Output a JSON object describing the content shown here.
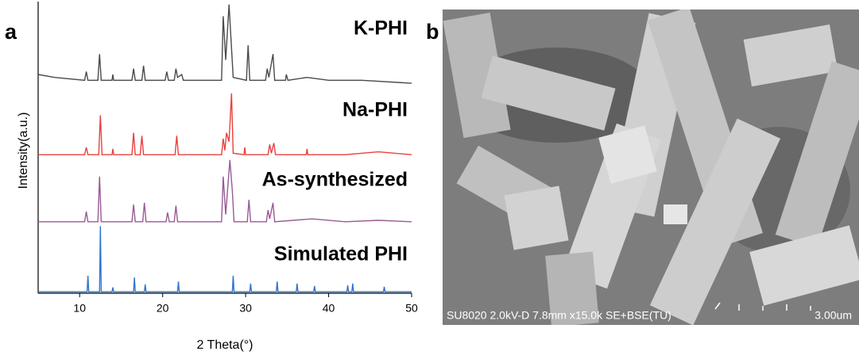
{
  "panel_labels": [
    "a",
    "b"
  ],
  "chart_data": {
    "type": "line",
    "xlabel": "2 Theta(°)",
    "ylabel": "Intensity(a.u.)",
    "xlim": [
      5,
      50
    ],
    "xticks": [
      10,
      20,
      30,
      40,
      50
    ],
    "ylim": [
      0,
      100
    ],
    "series": [
      {
        "name": "K-PHI",
        "color": "#4a4a4a",
        "x": [
          5,
          7,
          10.6,
          10.8,
          11.0,
          12.2,
          12.4,
          12.6,
          13.9,
          14.0,
          14.1,
          16.3,
          16.5,
          16.7,
          17.5,
          17.7,
          17.9,
          20.3,
          20.5,
          20.7,
          21.4,
          21.6,
          21.8,
          22.3,
          22.5,
          27.1,
          27.3,
          27.6,
          28.0,
          28.3,
          28.5,
          30.1,
          30.3,
          30.5,
          32.4,
          32.6,
          32.8,
          33.3,
          33.5,
          34.8,
          34.9,
          35.1,
          37.4,
          40,
          44,
          50
        ],
        "values": [
          75,
          74,
          73,
          76,
          73,
          73,
          82,
          73,
          73,
          75,
          73,
          73,
          77,
          73,
          73,
          78,
          73,
          73,
          76,
          73,
          73,
          77,
          74,
          75,
          73,
          73,
          95,
          80,
          99,
          84,
          74,
          73,
          85,
          73,
          73,
          77,
          74,
          82,
          73,
          73,
          75,
          73,
          74,
          73,
          73,
          72
        ]
      },
      {
        "name": "Na-PHI",
        "color": "#e8413e",
        "x": [
          5,
          10.6,
          10.8,
          11.0,
          12.3,
          12.5,
          12.7,
          13.9,
          14.0,
          14.1,
          16.3,
          16.5,
          16.7,
          17.3,
          17.5,
          17.7,
          21.5,
          21.7,
          21.9,
          27.1,
          27.3,
          27.5,
          27.7,
          28.0,
          28.3,
          28.5,
          29.8,
          29.9,
          30.0,
          32.7,
          32.9,
          33.1,
          33.4,
          33.6,
          37.3,
          37.4,
          37.5,
          42,
          46,
          50
        ],
        "values": [
          47.5,
          47.5,
          50,
          47.5,
          47.5,
          61,
          47.5,
          47.5,
          49.5,
          47.5,
          47.5,
          55,
          47.5,
          47.5,
          54,
          47.5,
          47.5,
          54,
          47.5,
          47.5,
          53,
          49,
          55,
          52,
          68.5,
          48,
          47.5,
          50,
          47.5,
          47.5,
          51,
          48,
          51.5,
          47.5,
          47.5,
          49.5,
          47.5,
          47.5,
          48.5,
          47.5
        ]
      },
      {
        "name": "As-synthesized",
        "color": "#9a5a96",
        "x": [
          5,
          10.6,
          10.8,
          11.0,
          12.2,
          12.4,
          12.6,
          16.3,
          16.5,
          16.7,
          17.6,
          17.8,
          18.0,
          20.4,
          20.6,
          20.8,
          21.4,
          21.6,
          21.8,
          27.1,
          27.3,
          27.6,
          28.1,
          28.4,
          28.6,
          30.2,
          30.4,
          30.6,
          32.5,
          32.7,
          32.9,
          33.3,
          33.5,
          38,
          42,
          46,
          50
        ],
        "values": [
          24.5,
          24.5,
          28,
          24.5,
          24.5,
          40,
          24.5,
          24.5,
          30.4,
          24.5,
          24.5,
          31,
          24.5,
          24.5,
          27.7,
          24.5,
          24.5,
          30,
          24.5,
          24.5,
          40,
          27,
          45.7,
          35,
          24.5,
          24.5,
          32,
          24.5,
          24.5,
          28.5,
          25.5,
          31,
          24.5,
          25.5,
          24.5,
          25,
          24.5
        ]
      },
      {
        "name": "Simulated PHI",
        "color": "#2f74cf",
        "x": [
          5,
          10.9,
          11.0,
          11.1,
          12.4,
          12.5,
          12.6,
          13.9,
          14.0,
          14.1,
          16.5,
          16.6,
          16.7,
          17.8,
          17.9,
          18.0,
          21.8,
          21.9,
          22.0,
          28.4,
          28.5,
          28.6,
          30.5,
          30.6,
          30.7,
          33.7,
          33.8,
          33.9,
          36.1,
          36.2,
          36.3,
          38.2,
          38.3,
          38.4,
          42.2,
          42.3,
          42.4,
          42.8,
          42.9,
          43.0,
          46.6,
          46.7,
          46.8,
          50
        ],
        "values": [
          0.5,
          0.5,
          6,
          0.5,
          0.5,
          23,
          0.5,
          0.5,
          2,
          0.5,
          0.5,
          5.4,
          0.5,
          0.5,
          3,
          0.5,
          0.5,
          4,
          0.5,
          0.5,
          6,
          0.5,
          0.5,
          3.3,
          0.5,
          0.5,
          4,
          0.5,
          0.5,
          3.3,
          0.5,
          0.5,
          2.5,
          0.5,
          0.5,
          2.7,
          0.5,
          0.5,
          3.3,
          0.5,
          0.5,
          2.2,
          0.5,
          0.5
        ]
      }
    ]
  },
  "sem_image": {
    "info": "SU8020 2.0kV-D 7.8mm x15.0k SE+BSE(TU)",
    "scale": "3.00um"
  }
}
